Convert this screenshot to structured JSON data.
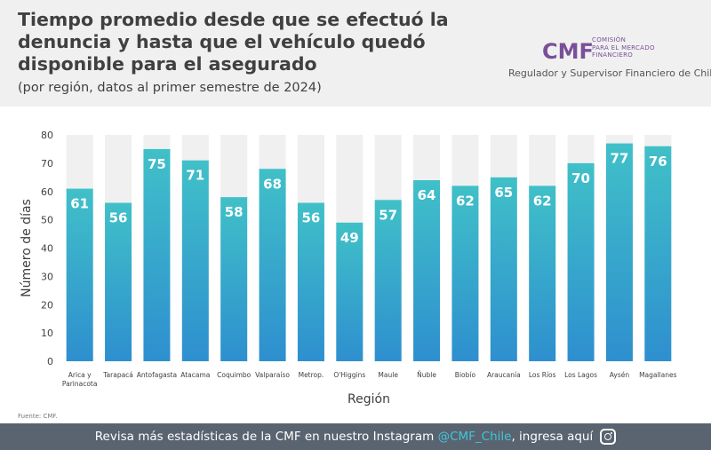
{
  "header": {
    "title": "Tiempo promedio desde que se efectuó la denuncia y hasta que el vehículo quedó disponible para el asegurado",
    "subtitle": "(por región, datos al primer semestre de 2024)"
  },
  "logo": {
    "mark": "CMF",
    "line1": "COMISIÓN",
    "line2": "PARA EL MERCADO",
    "line3": "FINANCIERO",
    "tagline": "Regulador y Supervisor Financiero de Chile"
  },
  "chart_data": {
    "type": "bar",
    "title": "Tiempo promedio desde que se efectuó la denuncia y hasta que el vehículo quedó disponible para el asegurado",
    "xlabel": "Región",
    "ylabel": "Número de días",
    "ylim": [
      0,
      80
    ],
    "yticks": [
      0,
      10,
      20,
      30,
      40,
      50,
      60,
      70,
      80
    ],
    "categories": [
      "Arica y Parinacota",
      "Tarapacá",
      "Antofagasta",
      "Atacama",
      "Coquimbo",
      "Valparaíso",
      "Metrop.",
      "O'Higgins",
      "Maule",
      "Ñuble",
      "Biobío",
      "Araucanía",
      "Los Ríos",
      "Los Lagos",
      "Aysén",
      "Magallanes"
    ],
    "values": [
      61,
      56,
      75,
      71,
      58,
      68,
      56,
      49,
      57,
      64,
      62,
      65,
      62,
      70,
      77,
      76
    ],
    "colors": {
      "bar_top": "#40c0c8",
      "bar_bottom": "#2e8fcf",
      "background_bar": "#f0f0f0",
      "label": "#ffffff"
    }
  },
  "source": "Fuente: CMF.",
  "footer": {
    "text_before": "Revisa más estadísticas de la CMF en nuestro Instagram ",
    "handle": "@CMF_Chile",
    "text_after": ", ingresa aquí"
  },
  "icons": [
    "instagram-icon"
  ]
}
